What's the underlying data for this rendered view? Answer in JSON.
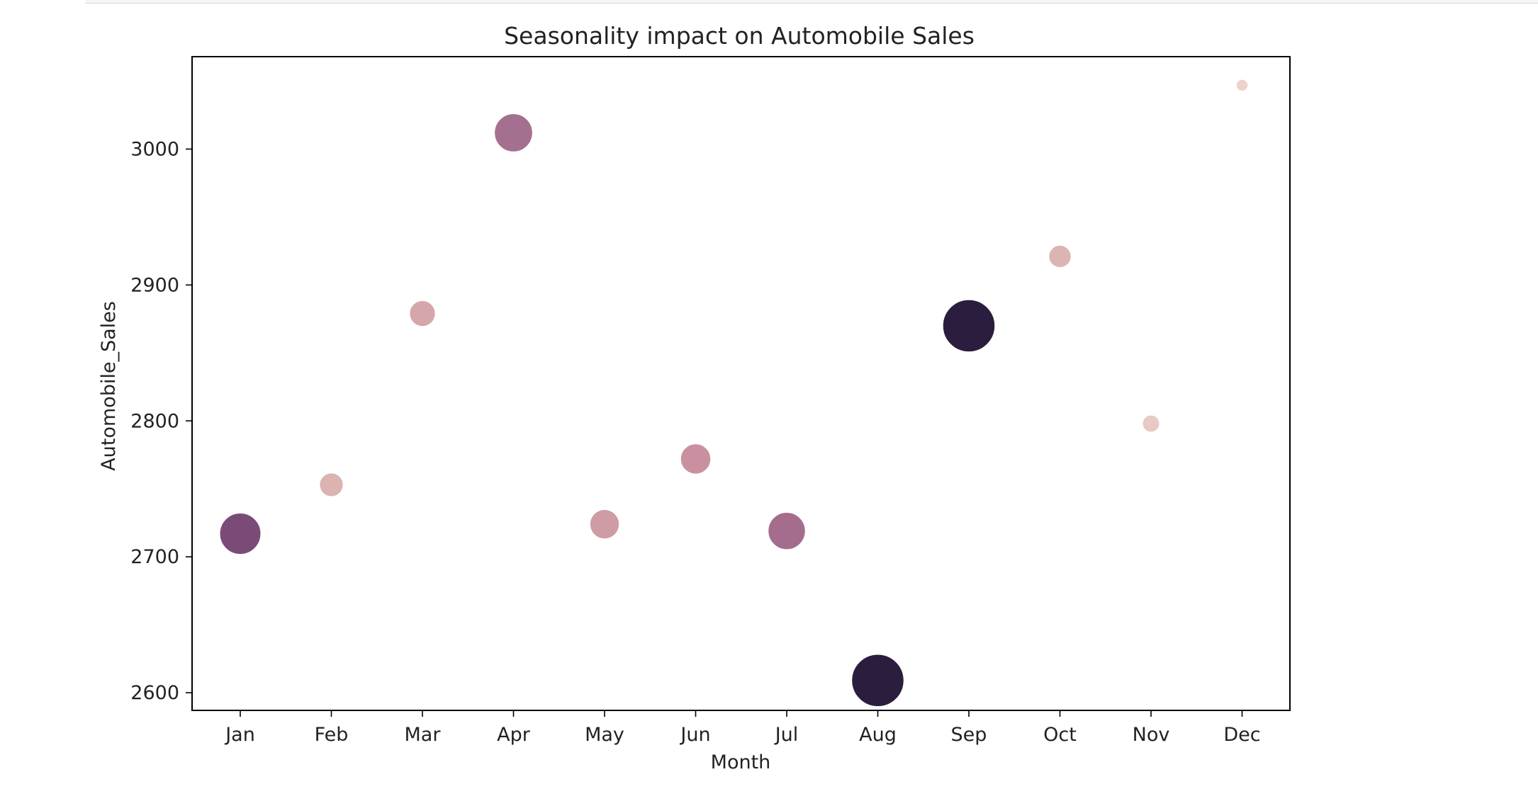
{
  "chart_data": {
    "type": "scatter",
    "title": "Seasonality impact on Automobile Sales",
    "xlabel": "Month",
    "ylabel": "Automobile_Sales",
    "categories": [
      "Jan",
      "Feb",
      "Mar",
      "Apr",
      "May",
      "Jun",
      "Jul",
      "Aug",
      "Sep",
      "Oct",
      "Nov",
      "Dec"
    ],
    "values": [
      2717,
      2753,
      2879,
      3012,
      2724,
      2772,
      2719,
      2609,
      2870,
      2921,
      2798,
      3047
    ],
    "size_values": [
      0.75,
      0.35,
      0.4,
      0.68,
      0.48,
      0.5,
      0.66,
      1.0,
      1.0,
      0.32,
      0.2,
      0.08
    ],
    "marker_colors": [
      "#7b4b78",
      "#dbb3b3",
      "#d6a6aa",
      "#a5708f",
      "#cf9ba5",
      "#c9919f",
      "#a46d8d",
      "#2b1d3d",
      "#2b1d3d",
      "#dcb4b3",
      "#e8c9c3",
      "#edd1cb"
    ],
    "yticks": [
      "2600",
      "2700",
      "2800",
      "2900",
      "3000"
    ],
    "ylim": [
      2587,
      3068
    ],
    "grid": false,
    "legend": "none"
  }
}
